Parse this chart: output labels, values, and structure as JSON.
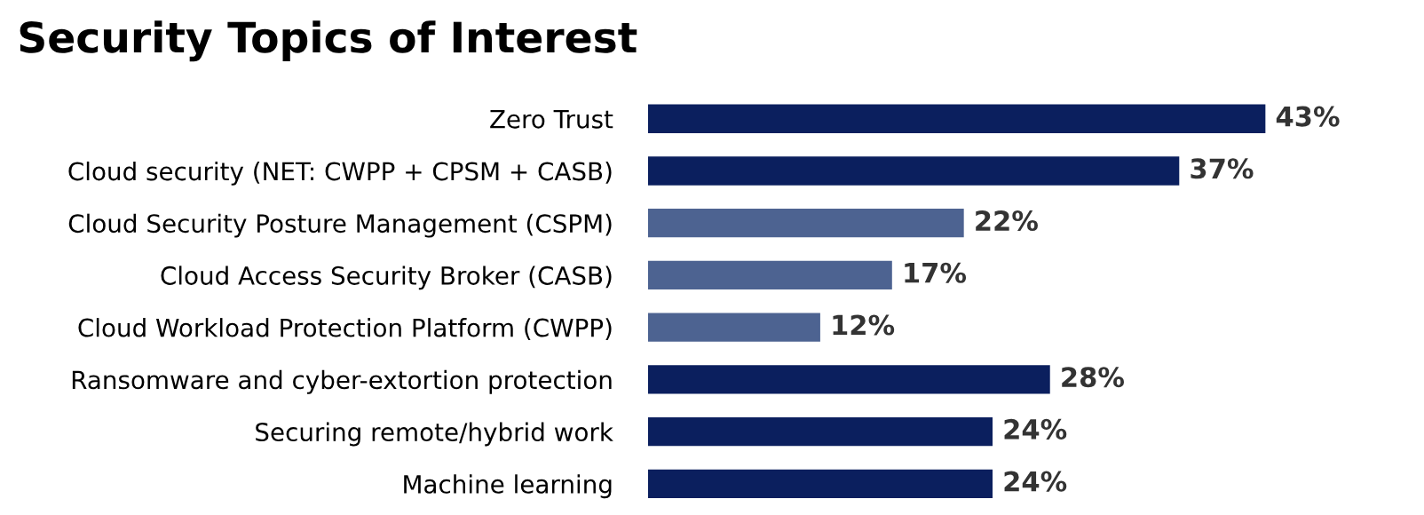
{
  "chart_data": {
    "type": "bar",
    "orientation": "horizontal",
    "title": "Security Topics of Interest",
    "categories": [
      "Zero Trust",
      "Cloud security (NET: CWPP + CPSM + CASB)",
      "Cloud Security Posture Management (CSPM)",
      "Cloud Access Security Broker (CASB)",
      "Cloud Workload Protection Platform (CWPP)",
      "Ransomware and cyber-extortion protection",
      "Securing remote/hybrid work",
      "Machine learning"
    ],
    "values": [
      43,
      37,
      22,
      17,
      12,
      28,
      24,
      24
    ],
    "colors": [
      "#0b1f5e",
      "#0b1f5e",
      "#4d6391",
      "#4d6391",
      "#4d6391",
      "#0b1f5e",
      "#0b1f5e",
      "#0b1f5e"
    ],
    "value_labels": [
      "43%",
      "37%",
      "22%",
      "17%",
      "12%",
      "28%",
      "24%",
      "24%"
    ]
  }
}
